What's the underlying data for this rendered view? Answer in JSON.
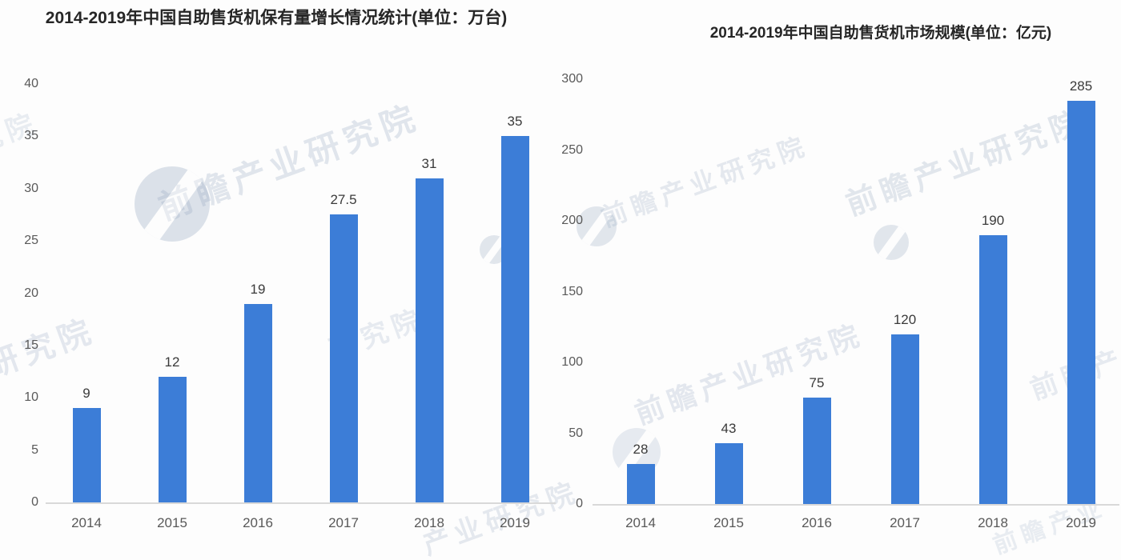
{
  "page": {
    "background": "#fdfdfd"
  },
  "colors": {
    "bar": "#3c7dd7",
    "axis_line": "#d9d9d9",
    "tick_label": "#595959",
    "value_label": "#3a3a3a",
    "title": "#262626",
    "watermark": "#8fa3bd"
  },
  "watermark": {
    "text": "前瞻产业研究院",
    "fragments": [
      "前瞻产业研究院",
      "业研究院",
      "研究院",
      "产业研究院",
      "前瞻产",
      "前瞻产业"
    ]
  },
  "chart_data": [
    {
      "type": "bar",
      "title": "2014-2019年中国自助售货机保有量增长情况统计(单位：万台)",
      "categories": [
        "2014",
        "2015",
        "2016",
        "2017",
        "2018",
        "2019"
      ],
      "values": [
        9,
        12,
        19,
        27.5,
        31,
        35
      ],
      "value_labels": [
        "9",
        "12",
        "19",
        "27.5",
        "31",
        "35"
      ],
      "xlabel": "",
      "ylabel": "",
      "ylim": [
        0,
        40
      ],
      "yticks": [
        0,
        5,
        10,
        15,
        20,
        25,
        30,
        35,
        40
      ],
      "grid": false,
      "legend": "none",
      "bar_color": "#3c7dd7"
    },
    {
      "type": "bar",
      "title": "2014-2019年中国自助售货机市场规模(单位：亿元)",
      "categories": [
        "2014",
        "2015",
        "2016",
        "2017",
        "2018",
        "2019"
      ],
      "values": [
        28,
        43,
        75,
        120,
        190,
        285
      ],
      "value_labels": [
        "28",
        "43",
        "75",
        "120",
        "190",
        "285"
      ],
      "xlabel": "",
      "ylabel": "",
      "ylim": [
        0,
        300
      ],
      "yticks": [
        0,
        50,
        100,
        150,
        200,
        250,
        300
      ],
      "grid": false,
      "legend": "none",
      "bar_color": "#3c7dd7"
    }
  ]
}
